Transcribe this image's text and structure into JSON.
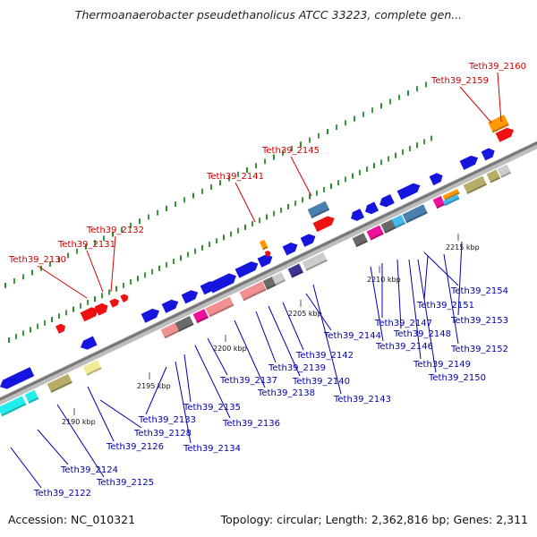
{
  "title": "Thermoanaerobacter pseudethanolicus ATCC 33223, complete gen...",
  "accession": "Accession: NC_010321",
  "topology": "Topology: circular; Length: 2,362,816 bp; Genes: 2,311",
  "colors": {
    "blue": "#1515dd",
    "pink": "#f09090",
    "magenta": "#ee1199",
    "gray": "#6a6a6a",
    "lightgray": "#cccccc",
    "steel": "#4a7fb0",
    "cyan": "#22eeee",
    "khaki": "#b7ad68",
    "paleyellow": "#f2ec9a",
    "orange": "#ff9900",
    "red": "#ee1111",
    "navy": "#3b3494",
    "skyblue": "#44bbee",
    "green": "#2d8a2d"
  },
  "kbp_ticks": [
    {
      "label": "2190 kbp",
      "pos": 0
    },
    {
      "label": "2195 kbp",
      "pos": 5
    },
    {
      "label": "2200 kbp",
      "pos": 10
    },
    {
      "label": "2205 kbp",
      "pos": 15
    },
    {
      "label": "2210 kbp",
      "pos": 20
    },
    {
      "label": "2215 kbp",
      "pos": 25
    }
  ],
  "genes_above": [
    {
      "name": "Teth39_2130"
    },
    {
      "name": "Teth39_2131"
    },
    {
      "name": "Teth39_2132"
    },
    {
      "name": "Teth39_2141"
    },
    {
      "name": "Teth39_2145"
    },
    {
      "name": "Teth39_2159"
    },
    {
      "name": "Teth39_2160"
    }
  ],
  "genes_below": [
    {
      "name": "Teth39_2122"
    },
    {
      "name": "Teth39_2124"
    },
    {
      "name": "Teth39_2125"
    },
    {
      "name": "Teth39_2126"
    },
    {
      "name": "Teth39_2128"
    },
    {
      "name": "Teth39_2133"
    },
    {
      "name": "Teth39_2134"
    },
    {
      "name": "Teth39_2135"
    },
    {
      "name": "Teth39_2136"
    },
    {
      "name": "Teth39_2137"
    },
    {
      "name": "Teth39_2138"
    },
    {
      "name": "Teth39_2139"
    },
    {
      "name": "Teth39_2140"
    },
    {
      "name": "Teth39_2142"
    },
    {
      "name": "Teth39_2143"
    },
    {
      "name": "Teth39_2144"
    },
    {
      "name": "Teth39_2146"
    },
    {
      "name": "Teth39_2147"
    },
    {
      "name": "Teth39_2148"
    },
    {
      "name": "Teth39_2149"
    },
    {
      "name": "Teth39_2150"
    },
    {
      "name": "Teth39_2151"
    },
    {
      "name": "Teth39_2152"
    },
    {
      "name": "Teth39_2153"
    },
    {
      "name": "Teth39_2154"
    }
  ]
}
